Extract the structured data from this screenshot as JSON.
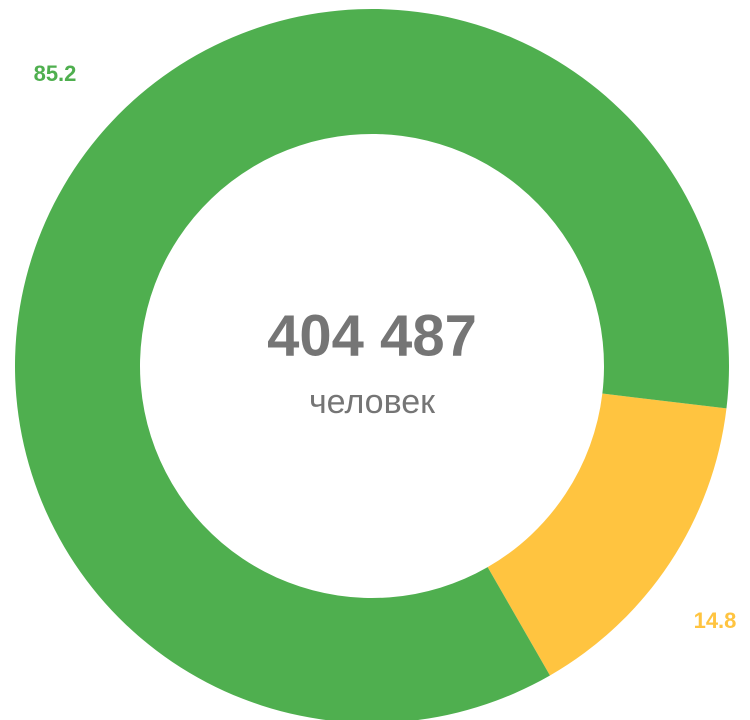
{
  "chart_data": {
    "type": "donut",
    "categories": [
      null,
      null
    ],
    "values": [
      85.2,
      14.8
    ],
    "colors": [
      "#4faf4f",
      "#ffc440"
    ],
    "center_value": "404 487",
    "center_unit": "человек"
  }
}
